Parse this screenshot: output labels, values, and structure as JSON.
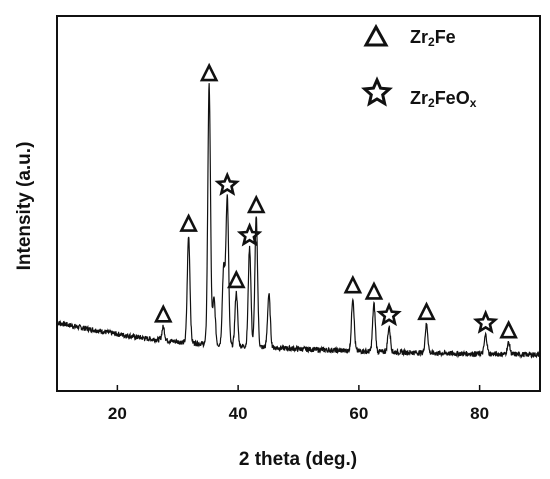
{
  "chart_data": {
    "type": "line",
    "xlabel": "2 theta (deg.)",
    "ylabel": "Intensity (a.u.)",
    "xlim": [
      10,
      90
    ],
    "xticks": [
      20,
      40,
      60,
      80
    ],
    "y_axis_ticks_labeled": false,
    "grid": false,
    "legend_position": "top-right",
    "legend": [
      {
        "marker": "triangle",
        "label_main": "Zr",
        "label_sub1": "2",
        "label_tail": "Fe"
      },
      {
        "marker": "star",
        "label_main": "Zr",
        "label_sub1": "2",
        "label_tail": "FeO",
        "label_sub2": "x"
      }
    ],
    "series_color": "#000000",
    "baseline": {
      "x": [
        10,
        15,
        20,
        25,
        30,
        35,
        40,
        45,
        50,
        55,
        60,
        65,
        70,
        75,
        80,
        85,
        90
      ],
      "y": [
        8.5,
        6.9,
        5.5,
        4.3,
        3.5,
        2.9,
        2.4,
        2.0,
        1.6,
        1.3,
        1.0,
        0.8,
        0.6,
        0.4,
        0.3,
        0.2,
        0.1
      ]
    },
    "peaks": [
      {
        "x": 27.6,
        "height": 3.5,
        "phase": "Zr2Fe"
      },
      {
        "x": 31.8,
        "height": 28.0,
        "phase": "Zr2Fe"
      },
      {
        "x": 35.2,
        "height": 68.0,
        "phase": "Zr2Fe"
      },
      {
        "x": 36.0,
        "height": 12.0,
        "phase": null
      },
      {
        "x": 37.6,
        "height": 20.0,
        "phase": null
      },
      {
        "x": 38.2,
        "height": 39.0,
        "phase": "Zr2FeOx"
      },
      {
        "x": 39.7,
        "height": 14.0,
        "phase": "Zr2Fe"
      },
      {
        "x": 41.9,
        "height": 26.0,
        "phase": "Zr2FeOx"
      },
      {
        "x": 43.0,
        "height": 34.0,
        "phase": "Zr2Fe"
      },
      {
        "x": 45.1,
        "height": 14.0,
        "phase": null
      },
      {
        "x": 59.0,
        "height": 14.0,
        "phase": "Zr2Fe"
      },
      {
        "x": 62.5,
        "height": 12.5,
        "phase": "Zr2Fe"
      },
      {
        "x": 65.0,
        "height": 6.5,
        "phase": "Zr2FeOx"
      },
      {
        "x": 71.2,
        "height": 7.5,
        "phase": "Zr2Fe"
      },
      {
        "x": 81.0,
        "height": 5.0,
        "phase": "Zr2FeOx"
      },
      {
        "x": 84.8,
        "height": 3.0,
        "phase": "Zr2Fe"
      }
    ]
  }
}
